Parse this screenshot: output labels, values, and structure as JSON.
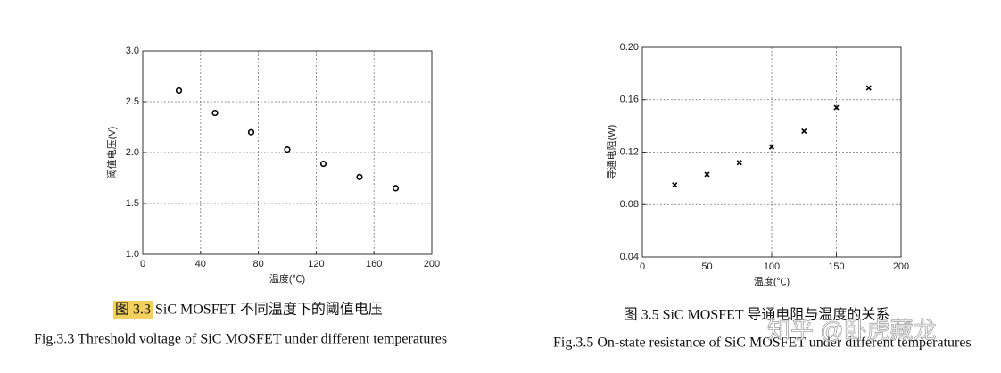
{
  "chart_data": [
    {
      "type": "scatter",
      "marker": "circle",
      "color": "#000000",
      "xlabel": "温度(℃)",
      "ylabel": "阈值电压(V)",
      "x": [
        25,
        50,
        75,
        100,
        125,
        150,
        175
      ],
      "values": [
        2.61,
        2.39,
        2.2,
        2.03,
        1.89,
        1.76,
        1.65
      ],
      "xlim": [
        0,
        200
      ],
      "xticks": [
        0,
        40,
        80,
        120,
        160,
        200
      ],
      "ylim": [
        1,
        3
      ],
      "yticks": [
        {
          "value": 1,
          "label": "1.0"
        },
        1.5,
        {
          "value": 2,
          "label": "2.0"
        },
        2.5,
        {
          "value": 3,
          "label": "3.0"
        }
      ],
      "grid": true,
      "figure_label": "图 3.3",
      "caption": "SiC MOSFET 不同温度下的阈值电压",
      "caption_en": "Fig.3.3 Threshold voltage of SiC MOSFET under different temperatures"
    },
    {
      "type": "scatter",
      "marker": "x",
      "color": "#000000",
      "xlabel": "温度(℃)",
      "ylabel": "导通电阻(W)",
      "x": [
        25,
        50,
        75,
        100,
        125,
        150,
        175
      ],
      "values": [
        0.095,
        0.103,
        0.112,
        0.124,
        0.136,
        0.154,
        0.169
      ],
      "xlim": [
        0,
        200
      ],
      "xticks": [
        0,
        50,
        100,
        150,
        200
      ],
      "ylim": [
        0.04,
        0.2
      ],
      "yticks": [
        0.04,
        0.08,
        0.12,
        0.16,
        {
          "value": 0.2,
          "label": "0.20"
        }
      ],
      "grid": true,
      "caption": "图 3.5 SiC MOSFET 导通电阻与温度的关系",
      "caption_en": "Fig.3.5 On-state resistance of SiC MOSFET under different temperatures"
    }
  ],
  "watermark": "知乎 @卧虎藏龙"
}
